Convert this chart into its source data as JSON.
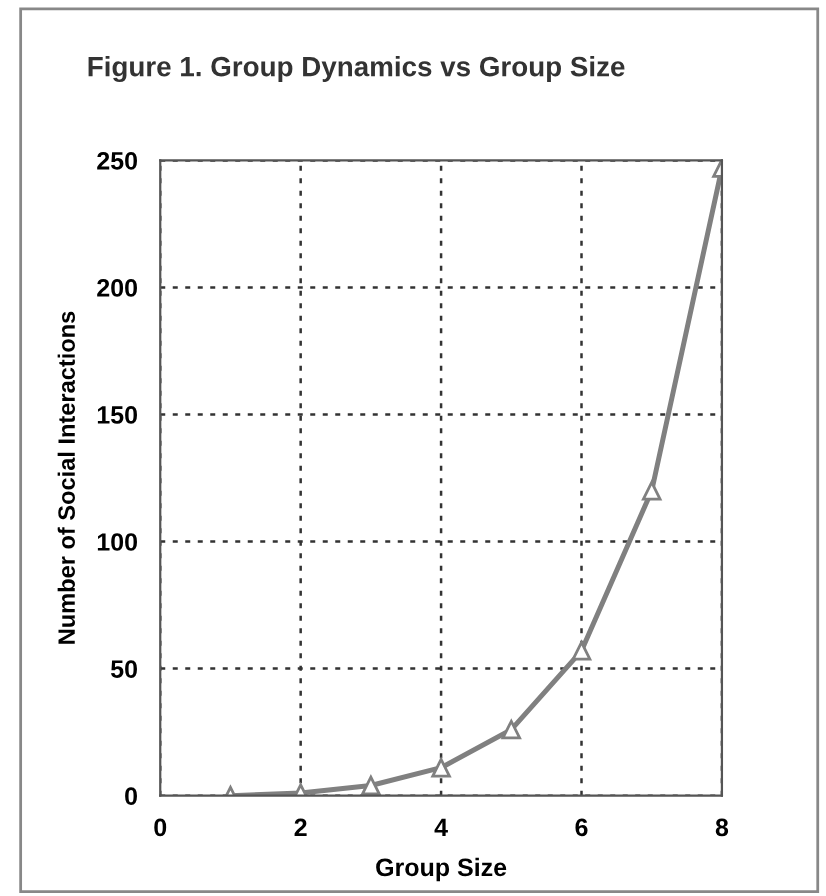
{
  "chart_data": {
    "type": "line",
    "title": "Figure 1. Group Dynamics vs Group Size",
    "xlabel": "Group Size",
    "ylabel": "Number of Social Interactions",
    "x": [
      1,
      2,
      3,
      4,
      5,
      6,
      7,
      8
    ],
    "series": [
      {
        "color": "#808080",
        "values": [
          0,
          1,
          4,
          11,
          26,
          57,
          120,
          247
        ]
      }
    ],
    "xlim": [
      0,
      8
    ],
    "xticks": [
      0,
      2,
      4,
      6,
      8
    ],
    "ylim": [
      0,
      250
    ],
    "yticks": [
      0,
      50,
      100,
      150,
      200,
      250
    ],
    "grid": true,
    "marker": "triangle",
    "line_style": "solid"
  }
}
